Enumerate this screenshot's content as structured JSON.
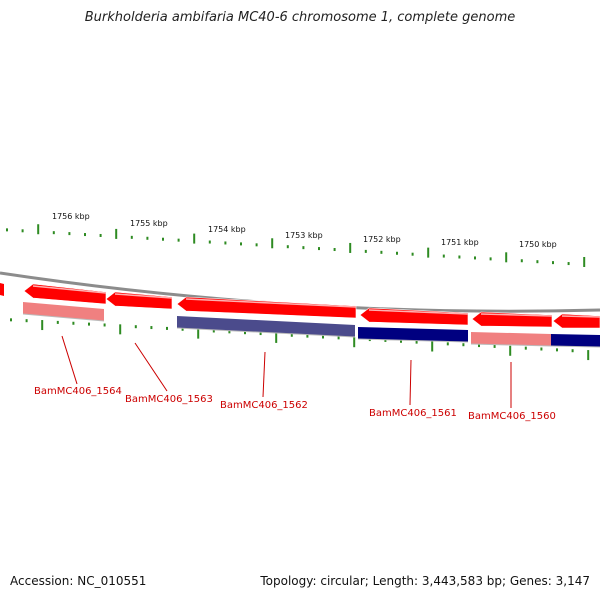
{
  "title": "Burkholderia ambifaria MC40-6 chromosome 1, complete genome",
  "footer": {
    "accession": "Accession: NC_010551",
    "stats": "Topology: circular; Length: 3,443,583 bp; Genes: 3,147"
  },
  "colors": {
    "backbone": "#8c8c8c",
    "forward_cds": "#ff0000",
    "reverse_cds": "#000080",
    "blast_forward": "#f08080",
    "blast_reverse": "#4b4b8c",
    "tick": "#2e8b22",
    "label": "#cc0000"
  },
  "scale_ticks": [
    {
      "label": "1756 kbp"
    },
    {
      "label": "1755 kbp"
    },
    {
      "label": "1754 kbp"
    },
    {
      "label": "1753 kbp"
    },
    {
      "label": "1752 kbp"
    },
    {
      "label": "1751 kbp"
    },
    {
      "label": "1750 kbp"
    }
  ],
  "gene_labels": [
    {
      "name": "BamMC406_1564"
    },
    {
      "name": "BamMC406_1563"
    },
    {
      "name": "BamMC406_1562"
    },
    {
      "name": "BamMC406_1561"
    },
    {
      "name": "BamMC406_1560"
    }
  ]
}
